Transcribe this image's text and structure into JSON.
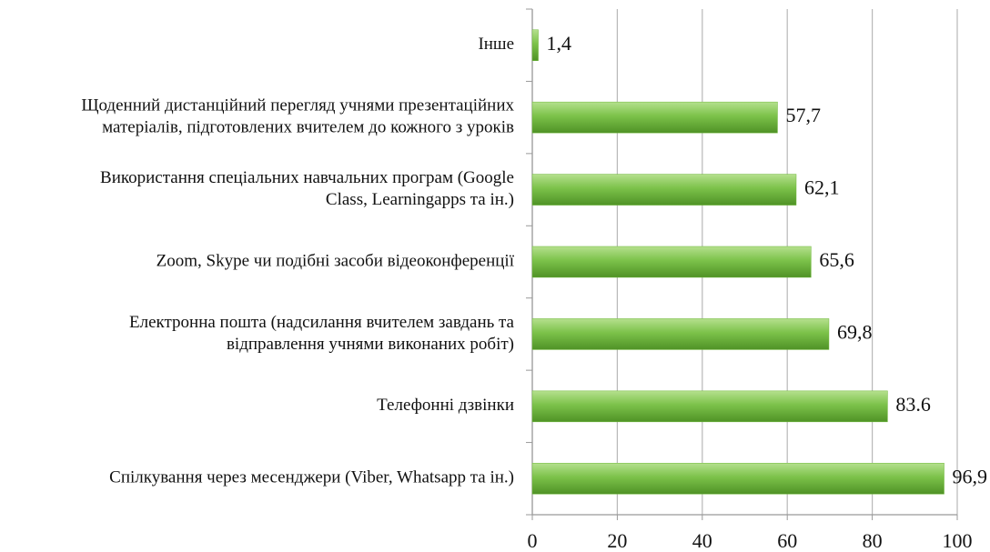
{
  "chart_data": {
    "type": "barh",
    "categories": [
      [
        "Інше"
      ],
      [
        "Щоденний дистанційний перегляд учнями презентаційних",
        "матеріалів, підготовлених вчителем до кожного з уроків"
      ],
      [
        "Використання спеціальних навчальних програм (Google",
        "Class, Learningapps та ін.)"
      ],
      [
        "Zoom, Skype чи подібні засоби відеоконференції"
      ],
      [
        "Електронна пошта (надсилання вчителем завдань та",
        "відправлення учнями виконаних робіт)"
      ],
      [
        "Телефонні дзвінки"
      ],
      [
        "Спілкування через месенджери (Viber, Whatsapp та ін.)"
      ]
    ],
    "values": [
      1.4,
      57.7,
      62.1,
      65.6,
      69.8,
      83.6,
      96.9
    ],
    "value_labels": [
      "1,4",
      "57,7",
      "62,1",
      "65,6",
      "69,8",
      "83.6",
      "96,9"
    ],
    "color": "#6fb83a",
    "xlim": [
      0,
      100
    ],
    "xticks": [
      0,
      20,
      40,
      60,
      80,
      100
    ],
    "grid": true
  }
}
